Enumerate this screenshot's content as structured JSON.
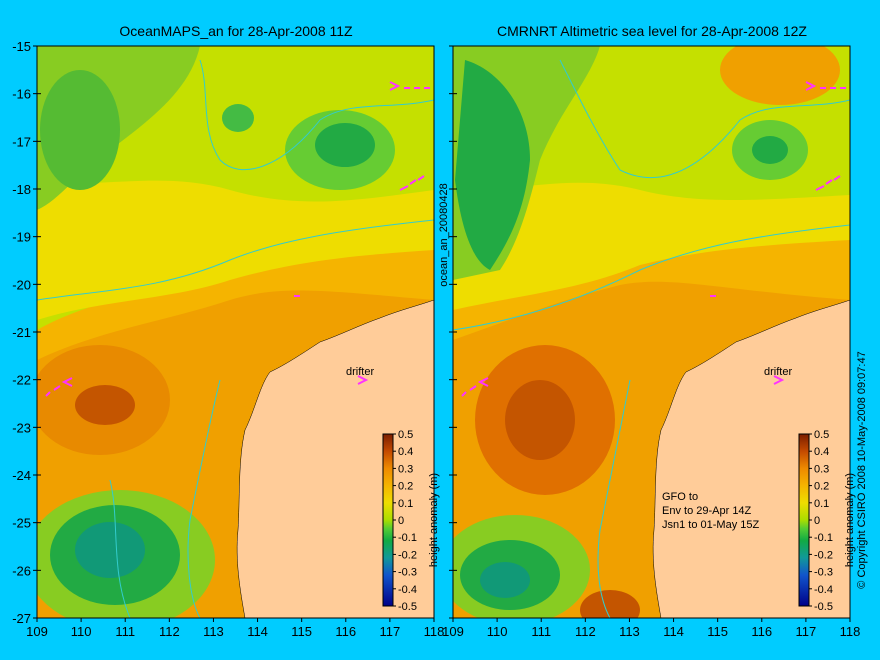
{
  "maps": [
    {
      "title": "OceanMAPS_an for 28-Apr-2008 11Z",
      "drifter_label": "drifter"
    },
    {
      "title": "CMRNRT Altimetric sea level  for 28-Apr-2008 12Z",
      "drifter_label": "drifter",
      "note_lines": [
        "GFO to",
        "Env to 29-Apr 14Z",
        "Jsn1 to 01-May 15Z"
      ]
    }
  ],
  "lon_ticks": [
    "109",
    "110",
    "111",
    "112",
    "113",
    "114",
    "115",
    "116",
    "117",
    "118"
  ],
  "lat_ticks": [
    "-15",
    "-16",
    "-17",
    "-18",
    "-19",
    "-20",
    "-21",
    "-22",
    "-23",
    "-24",
    "-25",
    "-26",
    "-27"
  ],
  "colorbar": {
    "label": "height anomaly (m)",
    "ticks": [
      "0.5",
      "0.4",
      "0.3",
      "0.2",
      "0.1",
      "0",
      "-0.1",
      "-0.2",
      "-0.3",
      "-0.4",
      "-0.5"
    ]
  },
  "side_label_middle": "ocean_an_20080428",
  "side_label_right": "© Copyright CSIRO 2008   10-May-2008 09:07:47",
  "colors": {
    "background": "#00ccff",
    "land": "#ffcc99",
    "contour": "#33cccc",
    "drifter": "#ff33ff"
  }
}
